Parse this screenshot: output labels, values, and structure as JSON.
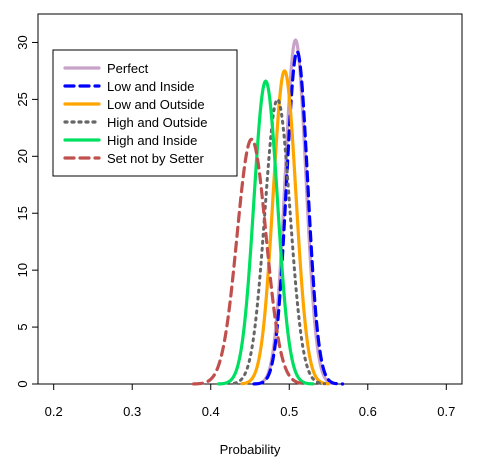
{
  "chart_data": {
    "type": "line",
    "title": "",
    "xlabel": "Probability",
    "ylabel": "",
    "xlim": [
      0.18,
      0.72
    ],
    "ylim": [
      0,
      32.5
    ],
    "x_ticks": [
      "0.2",
      "0.3",
      "0.4",
      "0.5",
      "0.6",
      "0.7"
    ],
    "y_ticks": [
      "0",
      "5",
      "10",
      "15",
      "20",
      "25",
      "30"
    ],
    "grid": false,
    "legend_position": "top-left",
    "series": [
      {
        "name": "Perfect",
        "color": "#c8a2c8",
        "dash": "solid",
        "mean": 0.508,
        "sd": 0.0132,
        "peak": 30.2,
        "lower": 0.465,
        "upper": 0.555
      },
      {
        "name": "Low and Inside",
        "color": "#0000ff",
        "dash": "dashed",
        "mean": 0.51,
        "sd": 0.0135,
        "peak": 29.2,
        "lower": 0.455,
        "upper": 0.568
      },
      {
        "name": "Low and Outside",
        "color": "#ffa500",
        "dash": "solid",
        "mean": 0.494,
        "sd": 0.0145,
        "peak": 27.5,
        "lower": 0.44,
        "upper": 0.55
      },
      {
        "name": "High and Outside",
        "color": "#666666",
        "dash": "dotted",
        "mean": 0.485,
        "sd": 0.016,
        "peak": 25.0,
        "lower": 0.43,
        "upper": 0.545
      },
      {
        "name": "High and Inside",
        "color": "#00e060",
        "dash": "solid",
        "mean": 0.47,
        "sd": 0.015,
        "peak": 26.6,
        "lower": 0.41,
        "upper": 0.53
      },
      {
        "name": "Set not by Setter",
        "color": "#c0504d",
        "dash": "dashed",
        "mean": 0.452,
        "sd": 0.0185,
        "peak": 21.5,
        "lower": 0.378,
        "upper": 0.515
      }
    ]
  }
}
